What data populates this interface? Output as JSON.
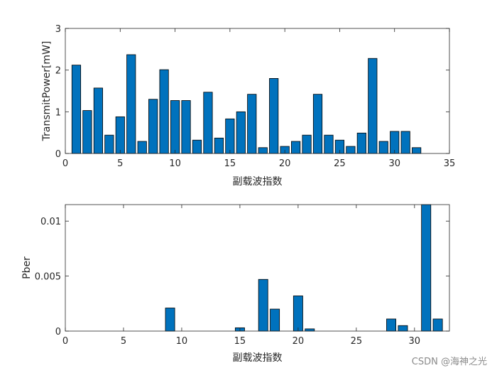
{
  "chart_data": [
    {
      "type": "bar",
      "xlabel": "副载波指数",
      "ylabel": "TransmitPower[mW]",
      "xlim": [
        0,
        35
      ],
      "ylim": [
        0,
        3
      ],
      "xticks": [
        0,
        5,
        10,
        15,
        20,
        25,
        30,
        35
      ],
      "yticks": [
        0,
        1,
        2,
        3
      ],
      "ytick_labels": [
        "0",
        "1",
        "2",
        "3"
      ],
      "grid": false,
      "bar_color": "#0072BD",
      "x": [
        1,
        2,
        3,
        4,
        5,
        6,
        7,
        8,
        9,
        10,
        11,
        12,
        13,
        14,
        15,
        16,
        17,
        18,
        19,
        20,
        21,
        22,
        23,
        24,
        25,
        26,
        27,
        28,
        29,
        30,
        31,
        32
      ],
      "values": [
        2.12,
        1.03,
        1.57,
        0.44,
        0.88,
        2.37,
        0.29,
        1.3,
        2.01,
        1.27,
        1.27,
        0.32,
        1.47,
        0.37,
        0.83,
        1.0,
        1.42,
        0.14,
        1.8,
        0.17,
        0.29,
        0.44,
        1.42,
        0.44,
        0.32,
        0.17,
        0.49,
        2.28,
        0.29,
        0.53,
        0.53,
        0.14
      ]
    },
    {
      "type": "bar",
      "xlabel": "副载波指数",
      "ylabel": "Pber",
      "xlim": [
        0,
        33
      ],
      "ylim": [
        0,
        0.0115
      ],
      "xticks": [
        0,
        5,
        10,
        15,
        20,
        25,
        30
      ],
      "yticks": [
        0,
        0.005,
        0.01
      ],
      "ytick_labels": [
        "0",
        "0.005",
        "0.01"
      ],
      "grid": false,
      "bar_color": "#0072BD",
      "x": [
        1,
        2,
        3,
        4,
        5,
        6,
        7,
        8,
        9,
        10,
        11,
        12,
        13,
        14,
        15,
        16,
        17,
        18,
        19,
        20,
        21,
        22,
        23,
        24,
        25,
        26,
        27,
        28,
        29,
        30,
        31,
        32
      ],
      "values": [
        0,
        0,
        0,
        0,
        0,
        0,
        0,
        0,
        0.0021,
        0,
        0,
        0,
        0,
        0,
        0.0003,
        0,
        0.0047,
        0.002,
        0,
        0.0032,
        0.0002,
        0,
        0,
        0,
        0,
        0,
        0,
        0.0011,
        0.0005,
        0,
        0.0115,
        0.0011
      ]
    }
  ],
  "watermark": "CSDN @海神之光"
}
